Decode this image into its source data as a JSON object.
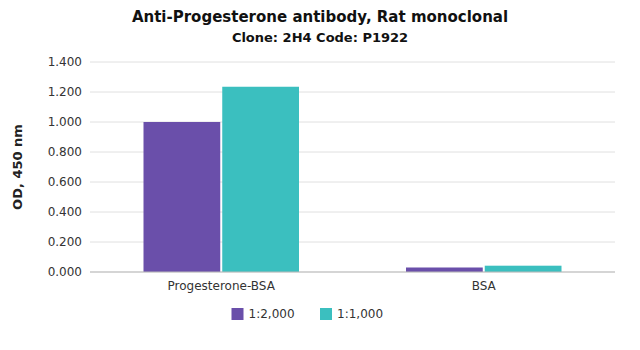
{
  "chart_data": {
    "type": "bar",
    "title": "Anti-Progesterone antibody, Rat monoclonal",
    "subtitle": "Clone: 2H4  Code: P1922",
    "categories": [
      "Progesterone-BSA",
      "BSA"
    ],
    "series": [
      {
        "name": "1:2,000",
        "color": "#6a4faa",
        "values": [
          1.0,
          0.03
        ]
      },
      {
        "name": "1:1,000",
        "color": "#3bbfbf",
        "values": [
          1.235,
          0.042
        ]
      }
    ],
    "y_label": "OD, 450 nm",
    "ylim": [
      0,
      1.4
    ],
    "yticks": [
      {
        "value": 0,
        "label": "0.000"
      },
      {
        "value": 0.2,
        "label": "0.200"
      },
      {
        "value": 0.4,
        "label": "0.400"
      },
      {
        "value": 0.6,
        "label": "0.600"
      },
      {
        "value": 0.8,
        "label": "0.800"
      },
      {
        "value": 1.0,
        "label": "1.000"
      },
      {
        "value": 1.2,
        "label": "1.200"
      },
      {
        "value": 1.4,
        "label": "1.400"
      }
    ],
    "grid": true,
    "legend": "bottom"
  }
}
